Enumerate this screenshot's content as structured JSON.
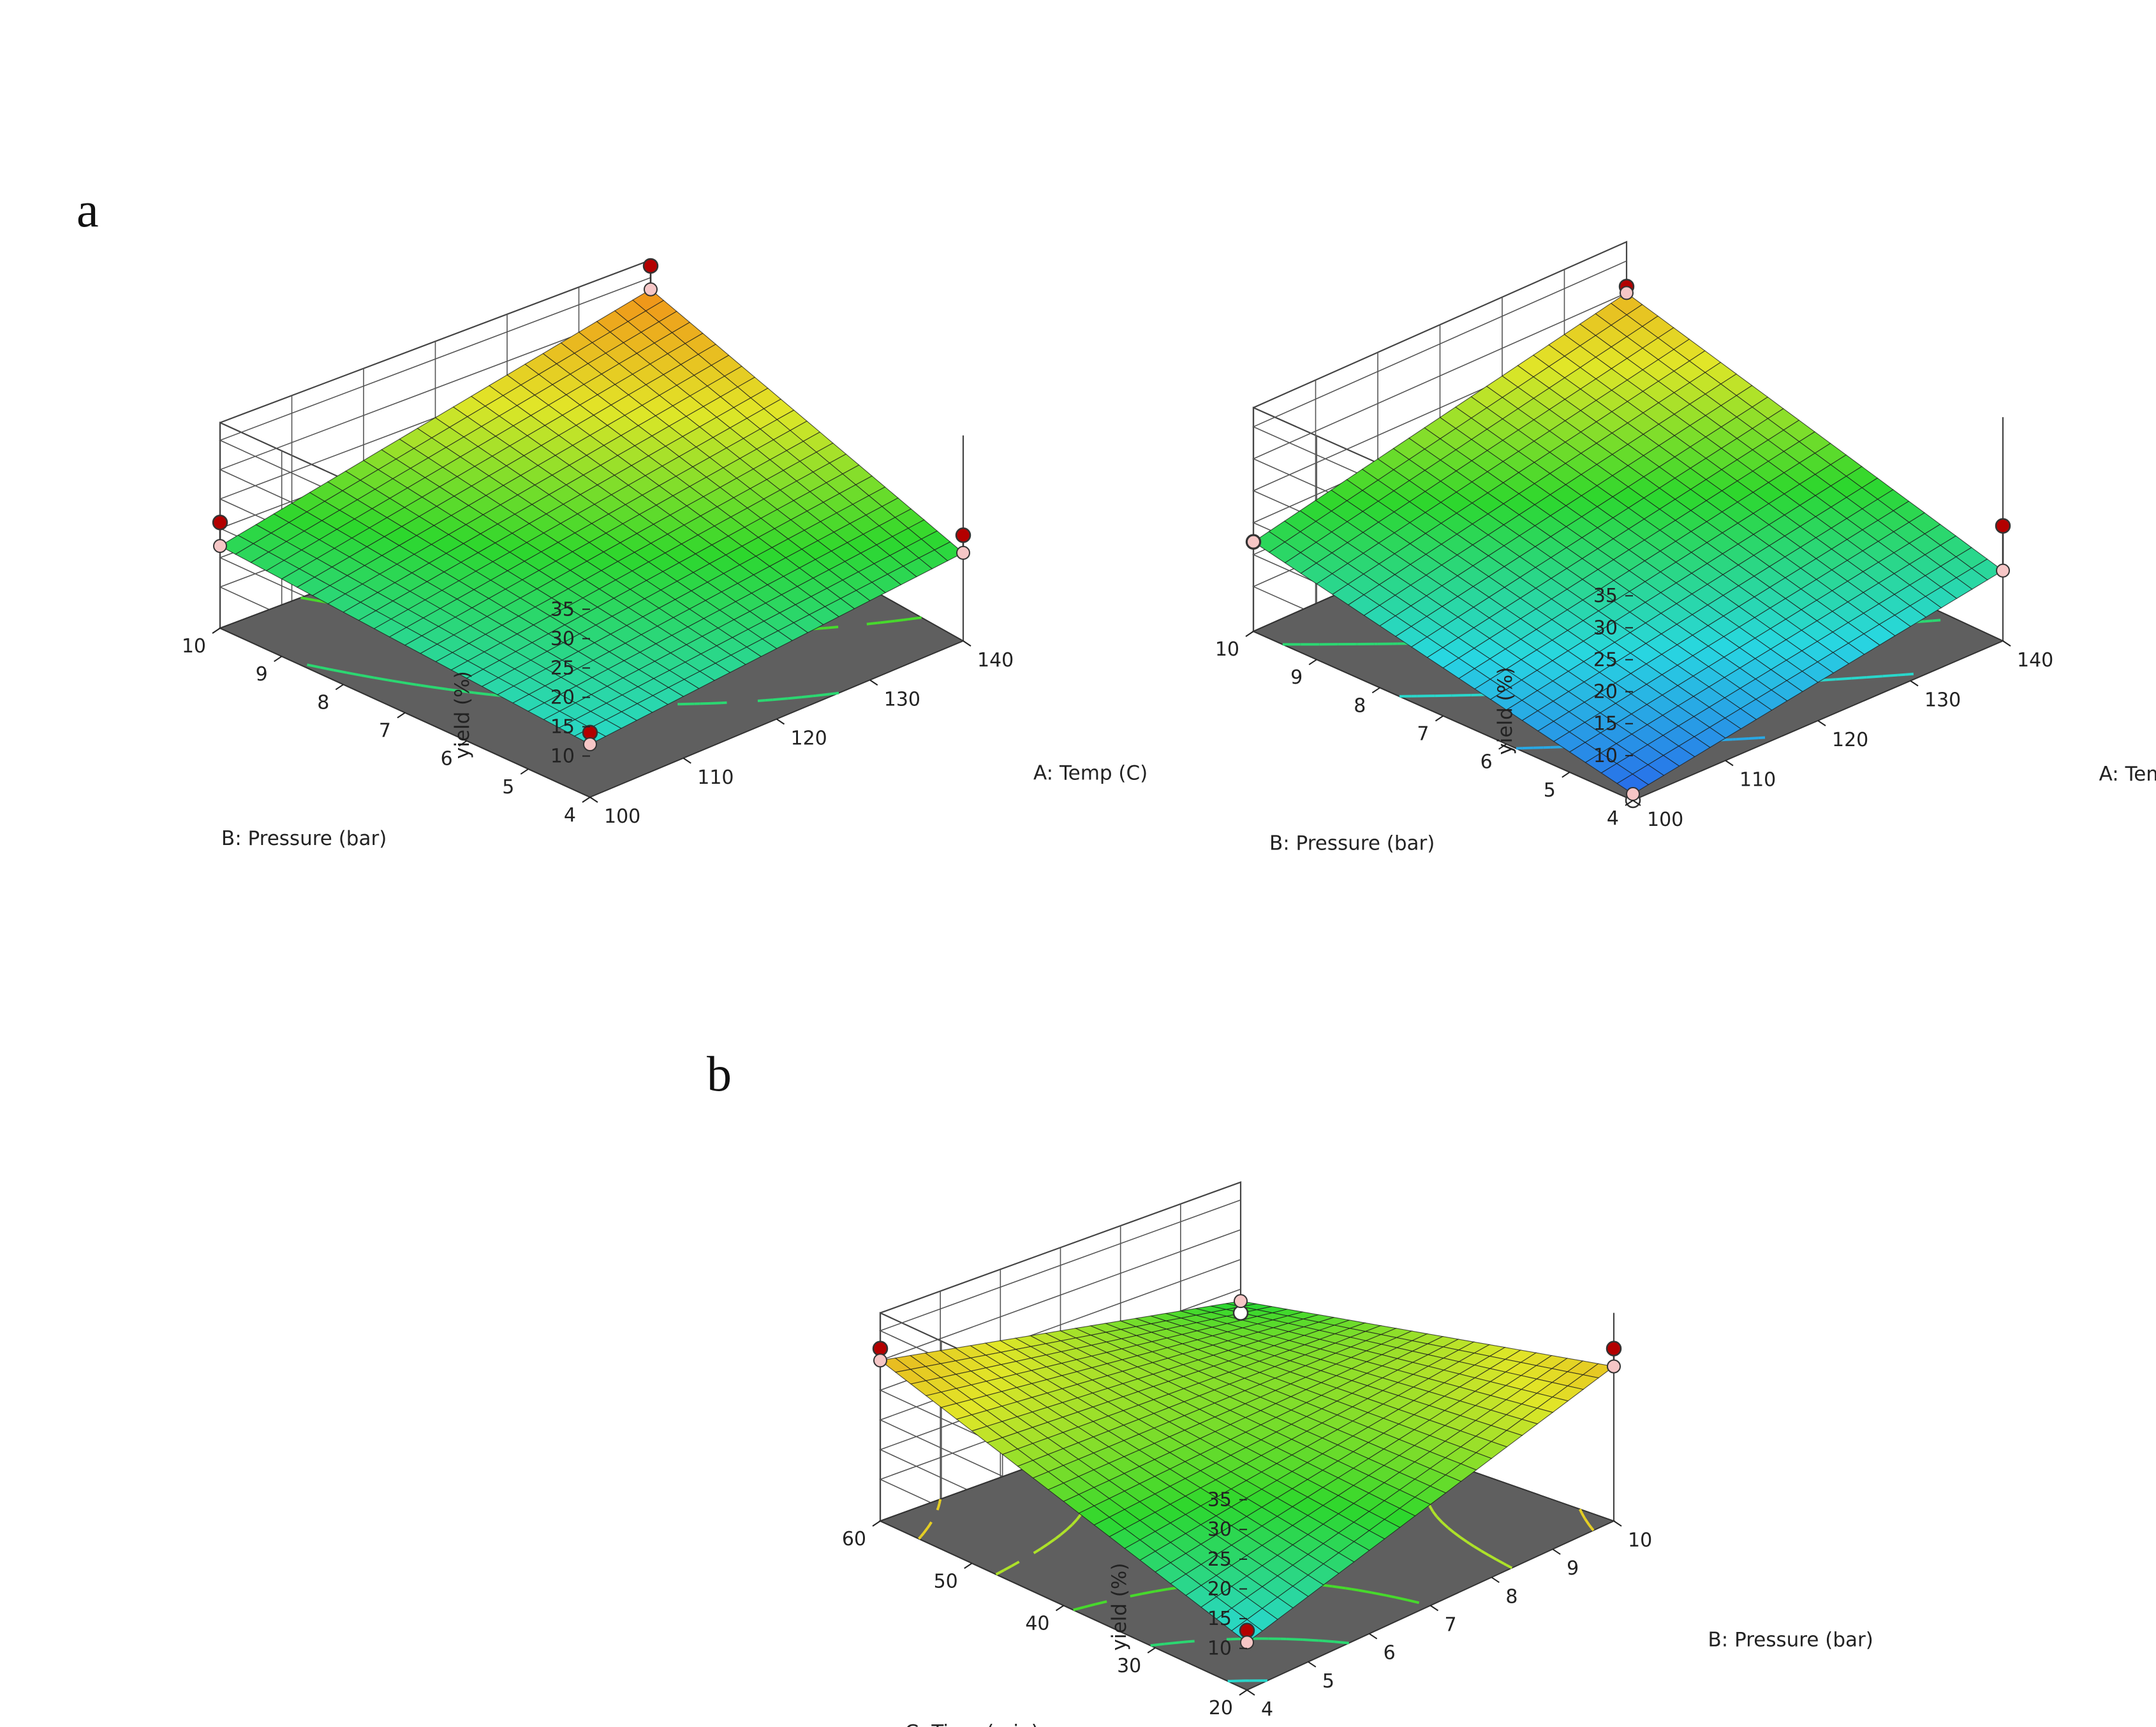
{
  "panel_labels": [
    "a",
    "b"
  ],
  "chart_data": [
    {
      "type": "surface",
      "panel": "a",
      "x_axis": {
        "label": "A: Temp (C)",
        "min": 100,
        "max": 140,
        "ticks": [
          100,
          110,
          120,
          130,
          140
        ]
      },
      "y_axis": {
        "label": "B: Pressure (bar)",
        "min": 4,
        "max": 10,
        "ticks": [
          4,
          5,
          6,
          7,
          8,
          9,
          10
        ]
      },
      "z_axis": {
        "label": "yield (%)",
        "ticks": [
          10,
          15,
          20,
          25,
          30,
          35
        ]
      },
      "surface_corners": [
        {
          "temp": 100,
          "pressure": 4,
          "yield": 12
        },
        {
          "temp": 140,
          "pressure": 4,
          "yield": 18
        },
        {
          "temp": 100,
          "pressure": 10,
          "yield": 17
        },
        {
          "temp": 140,
          "pressure": 10,
          "yield": 33
        }
      ],
      "design_points": [
        {
          "temp": 100,
          "pressure": 4,
          "yield": 14
        },
        {
          "temp": 140,
          "pressure": 4,
          "yield": 21
        },
        {
          "temp": 100,
          "pressure": 10,
          "yield": 21
        },
        {
          "temp": 140,
          "pressure": 10,
          "yield": 37
        }
      ],
      "colormap": "blue-cyan-green-yellow-orange",
      "floor_color": "#5f5f5f",
      "grid": true
    },
    {
      "type": "surface",
      "panel": "a",
      "x_axis": {
        "label": "A: Temp (C)",
        "min": 100,
        "max": 140,
        "ticks": [
          100,
          110,
          120,
          130,
          140
        ]
      },
      "y_axis": {
        "label": "B: Pressure (bar)",
        "min": 4,
        "max": 10,
        "ticks": [
          4,
          5,
          6,
          7,
          8,
          9,
          10
        ]
      },
      "z_axis": {
        "label": "yield (%)",
        "ticks": [
          10,
          15,
          20,
          25,
          30,
          35
        ]
      },
      "surface_corners": [
        {
          "temp": 100,
          "pressure": 4,
          "yield": 4
        },
        {
          "temp": 140,
          "pressure": 4,
          "yield": 14
        },
        {
          "temp": 100,
          "pressure": 10,
          "yield": 17
        },
        {
          "temp": 140,
          "pressure": 10,
          "yield": 30
        }
      ],
      "design_points": [
        {
          "temp": 100,
          "pressure": 4,
          "yield": 3
        },
        {
          "temp": 140,
          "pressure": 4,
          "yield": 21
        },
        {
          "temp": 100,
          "pressure": 10,
          "yield": 17
        },
        {
          "temp": 140,
          "pressure": 10,
          "yield": 31
        }
      ],
      "colormap": "blue-cyan-green-yellow-orange",
      "floor_color": "#5f5f5f",
      "grid": true
    },
    {
      "type": "surface",
      "panel": "b",
      "x_axis": {
        "label": "B: Pressure (bar)",
        "min": 4,
        "max": 10,
        "ticks": [
          4,
          5,
          6,
          7,
          8,
          9,
          10
        ]
      },
      "y_axis": {
        "label": "C: Time (min)",
        "min": 20,
        "max": 60,
        "ticks": [
          20,
          30,
          40,
          50,
          60
        ]
      },
      "z_axis": {
        "label": "yield (%)",
        "ticks": [
          10,
          15,
          20,
          25,
          30,
          35
        ]
      },
      "surface_corners": [
        {
          "pressure": 4,
          "time": 20,
          "yield": 11
        },
        {
          "pressure": 10,
          "time": 20,
          "yield": 29
        },
        {
          "pressure": 4,
          "time": 60,
          "yield": 30
        },
        {
          "pressure": 10,
          "time": 60,
          "yield": 18
        }
      ],
      "design_points": [
        {
          "pressure": 4,
          "time": 20,
          "yield": 13
        },
        {
          "pressure": 10,
          "time": 20,
          "yield": 32
        },
        {
          "pressure": 4,
          "time": 60,
          "yield": 32
        },
        {
          "pressure": 10,
          "time": 60,
          "yield": 16
        }
      ],
      "colormap": "blue-cyan-green-yellow-orange",
      "floor_color": "#5f5f5f",
      "grid": true
    }
  ]
}
